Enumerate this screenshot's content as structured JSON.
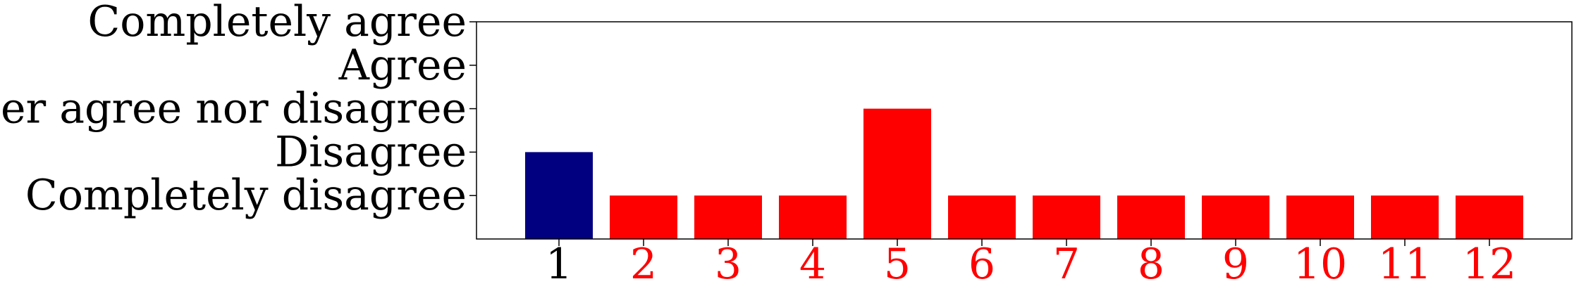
{
  "chart_data": {
    "type": "bar",
    "title": "",
    "xlabel": "",
    "ylabel": "",
    "categories": [
      "1",
      "2",
      "3",
      "4",
      "5",
      "6",
      "7",
      "8",
      "9",
      "10",
      "11",
      "12"
    ],
    "values": [
      2,
      1,
      1,
      1,
      3,
      1,
      1,
      1,
      1,
      1,
      1,
      1
    ],
    "ylim": [
      0,
      5
    ],
    "yticks": [
      1,
      2,
      3,
      4,
      5
    ],
    "ytick_labels": [
      "Completely disagree",
      "Disagree",
      "Neither agree nor disagree",
      "Agree",
      "Completely agree"
    ],
    "grid": false,
    "legend": "none",
    "bar_colors": [
      "#000080",
      "#ff0000",
      "#ff0000",
      "#ff0000",
      "#ff0000",
      "#ff0000",
      "#ff0000",
      "#ff0000",
      "#ff0000",
      "#ff0000",
      "#ff0000",
      "#ff0000"
    ],
    "xtick_label_colors": [
      "#000000",
      "#ff0000",
      "#ff0000",
      "#ff0000",
      "#ff0000",
      "#ff0000",
      "#ff0000",
      "#ff0000",
      "#ff0000",
      "#ff0000",
      "#ff0000",
      "#ff0000"
    ]
  }
}
